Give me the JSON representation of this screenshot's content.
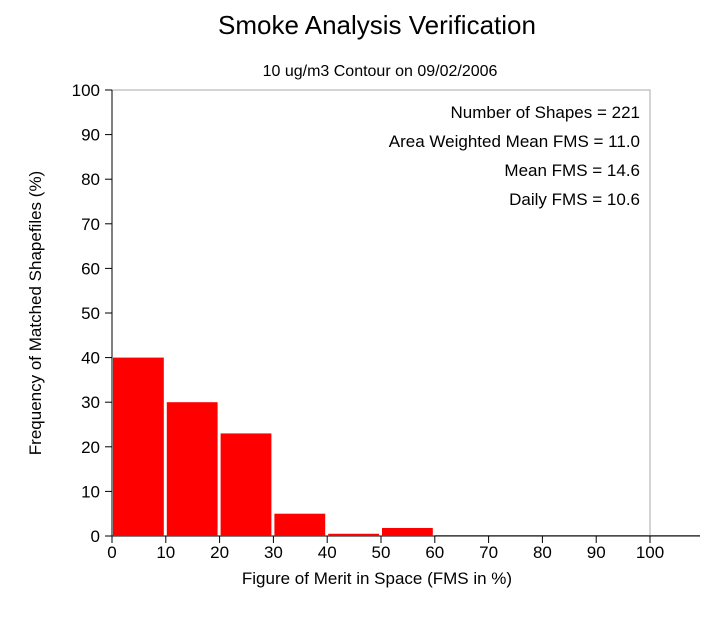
{
  "chart_data": {
    "type": "bar",
    "title": "Smoke Analysis Verification",
    "subtitle": "10 ug/m3 Contour on 09/02/2006",
    "xlabel": "Figure of Merit in Space (FMS in %)",
    "ylabel": "Frequency of Matched Shapefiles (%)",
    "xlim": [
      0,
      100
    ],
    "ylim": [
      0,
      100
    ],
    "xticks": [
      0,
      10,
      20,
      30,
      40,
      50,
      60,
      70,
      80,
      90,
      100
    ],
    "yticks": [
      0,
      10,
      20,
      30,
      40,
      50,
      60,
      70,
      80,
      90,
      100
    ],
    "bins": [
      {
        "start": 0,
        "end": 10,
        "value": 40
      },
      {
        "start": 10,
        "end": 20,
        "value": 30
      },
      {
        "start": 20,
        "end": 30,
        "value": 23
      },
      {
        "start": 30,
        "end": 40,
        "value": 5
      },
      {
        "start": 40,
        "end": 50,
        "value": 0.5
      },
      {
        "start": 50,
        "end": 60,
        "value": 1.8
      },
      {
        "start": 60,
        "end": 70,
        "value": 0
      },
      {
        "start": 70,
        "end": 80,
        "value": 0
      },
      {
        "start": 80,
        "end": 90,
        "value": 0
      },
      {
        "start": 90,
        "end": 100,
        "value": 0
      }
    ],
    "bar_color": "#ff0000",
    "grid": false,
    "annotations": [
      "Number of Shapes = 221",
      "Area Weighted Mean FMS = 11.0",
      "Mean FMS = 14.6",
      "Daily FMS = 10.6"
    ]
  }
}
